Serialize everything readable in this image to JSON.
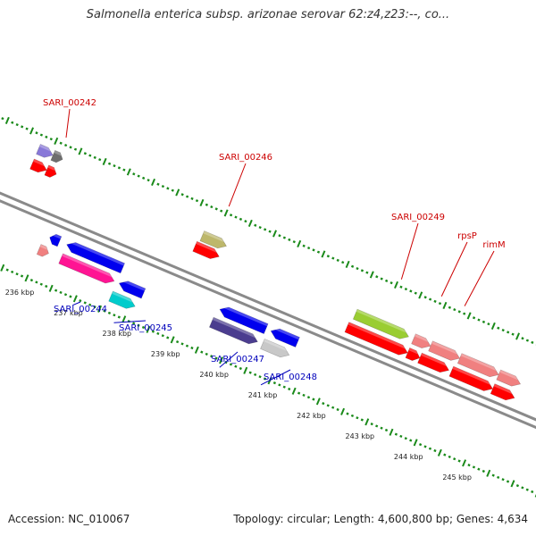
{
  "title": "Salmonella enterica subsp. arizonae serovar 62:z4,z23:--, co...",
  "footer": {
    "accession": "Accession: NC_010067",
    "topology": "Topology: circular; Length: 4,600,800 bp; Genes: 4,634"
  },
  "colors": {
    "backbone": "#8a8a8a",
    "tick": "#1a8a1a",
    "label_forward": "#cc0000",
    "label_reverse": "#0000bb"
  },
  "ticks": [
    {
      "label": "236 kbp",
      "kbp": 236
    },
    {
      "label": "237 kbp",
      "kbp": 237
    },
    {
      "label": "238 kbp",
      "kbp": 238
    },
    {
      "label": "239 kbp",
      "kbp": 239
    },
    {
      "label": "240 kbp",
      "kbp": 240
    },
    {
      "label": "241 kbp",
      "kbp": 241
    },
    {
      "label": "242 kbp",
      "kbp": 242
    },
    {
      "label": "243 kbp",
      "kbp": 243
    },
    {
      "label": "244 kbp",
      "kbp": 244
    },
    {
      "label": "245 kbp",
      "kbp": 245
    }
  ],
  "features": [
    {
      "id": "f1",
      "start": 235.25,
      "end": 235.55,
      "lane": 3,
      "dir": 1,
      "color": "#8878d8"
    },
    {
      "id": "f2",
      "start": 235.55,
      "end": 235.75,
      "lane": 3,
      "dir": 1,
      "color": "#6e6e6e"
    },
    {
      "id": "f3",
      "start": 235.25,
      "end": 235.55,
      "lane": 2,
      "dir": 1,
      "color": "#ff0000"
    },
    {
      "id": "f4",
      "start": 235.55,
      "end": 235.75,
      "lane": 2,
      "dir": 1,
      "color": "#ff0000"
    },
    {
      "id": "f5",
      "start": 236.1,
      "end": 236.3,
      "lane": -1,
      "dir": -1,
      "color": "#0000ee"
    },
    {
      "id": "f6",
      "start": 236.45,
      "end": 237.6,
      "lane": -1,
      "dir": -1,
      "color": "#0000ee"
    },
    {
      "id": "f7",
      "start": 236.0,
      "end": 236.2,
      "lane": -2,
      "dir": 1,
      "color": "#f08080"
    },
    {
      "id": "f8",
      "start": 236.45,
      "end": 237.55,
      "lane": -2,
      "dir": 1,
      "color": "#ff1493"
    },
    {
      "id": "f9",
      "start": 237.65,
      "end": 238.15,
      "lane": -2,
      "dir": -1,
      "color": "#0000ee"
    },
    {
      "id": "f10",
      "start": 237.6,
      "end": 238.1,
      "lane": -3,
      "dir": 1,
      "color": "#00cccc"
    },
    {
      "id": "f11",
      "start": 238.75,
      "end": 239.25,
      "lane": 2,
      "dir": 1,
      "color": "#bdb76b"
    },
    {
      "id": "f12",
      "start": 238.7,
      "end": 239.2,
      "lane": 1,
      "dir": 1,
      "color": "#ff0000"
    },
    {
      "id": "f13",
      "start": 239.6,
      "end": 240.55,
      "lane": -1,
      "dir": -1,
      "color": "#0000ee"
    },
    {
      "id": "f14",
      "start": 239.55,
      "end": 240.5,
      "lane": -2,
      "dir": 1,
      "color": "#4b3d8f"
    },
    {
      "id": "f15",
      "start": 240.65,
      "end": 241.2,
      "lane": -1,
      "dir": -1,
      "color": "#0000ee"
    },
    {
      "id": "f16",
      "start": 240.6,
      "end": 241.15,
      "lane": -2,
      "dir": 1,
      "color": "#c8c8c8"
    },
    {
      "id": "f17",
      "start": 242.0,
      "end": 243.1,
      "lane": 1,
      "dir": 1,
      "color": "#9acd32"
    },
    {
      "id": "f18",
      "start": 241.95,
      "end": 243.2,
      "lane": 0,
      "dir": 1,
      "color": "#ff0000"
    },
    {
      "id": "f19",
      "start": 243.2,
      "end": 243.55,
      "lane": 1,
      "dir": 1,
      "color": "#f08080"
    },
    {
      "id": "f20",
      "start": 243.55,
      "end": 244.15,
      "lane": 1,
      "dir": 1,
      "color": "#f08080"
    },
    {
      "id": "f21",
      "start": 243.2,
      "end": 243.45,
      "lane": 0,
      "dir": 1,
      "color": "#ff0000"
    },
    {
      "id": "f22",
      "start": 243.45,
      "end": 244.05,
      "lane": 0,
      "dir": 1,
      "color": "#ff0000"
    },
    {
      "id": "f23",
      "start": 244.15,
      "end": 244.95,
      "lane": 1,
      "dir": 1,
      "color": "#f08080"
    },
    {
      "id": "f24",
      "start": 244.1,
      "end": 244.95,
      "lane": 0,
      "dir": 1,
      "color": "#ff0000"
    },
    {
      "id": "f25",
      "start": 244.95,
      "end": 245.4,
      "lane": 1,
      "dir": 1,
      "color": "#f08080"
    },
    {
      "id": "f26",
      "start": 244.95,
      "end": 245.4,
      "lane": 0,
      "dir": 1,
      "color": "#ff0000"
    }
  ],
  "labels": [
    {
      "text": "SARI_00242",
      "strand": "forward",
      "feature": "f2"
    },
    {
      "text": "SARI_00246",
      "strand": "forward",
      "feature": "f11"
    },
    {
      "text": "SARI_00249",
      "strand": "forward",
      "feature": "f17"
    },
    {
      "text": "rpsP",
      "strand": "forward",
      "feature": "f19"
    },
    {
      "text": "rimM",
      "strand": "forward",
      "feature": "f20"
    },
    {
      "text": "SARI_00244",
      "strand": "reverse",
      "feature": "f8"
    },
    {
      "text": "SARI_00245",
      "strand": "reverse",
      "feature": "f10"
    },
    {
      "text": "SARI_00247",
      "strand": "reverse",
      "feature": "f14"
    },
    {
      "text": "SARI_00248",
      "strand": "reverse",
      "feature": "f16"
    }
  ]
}
